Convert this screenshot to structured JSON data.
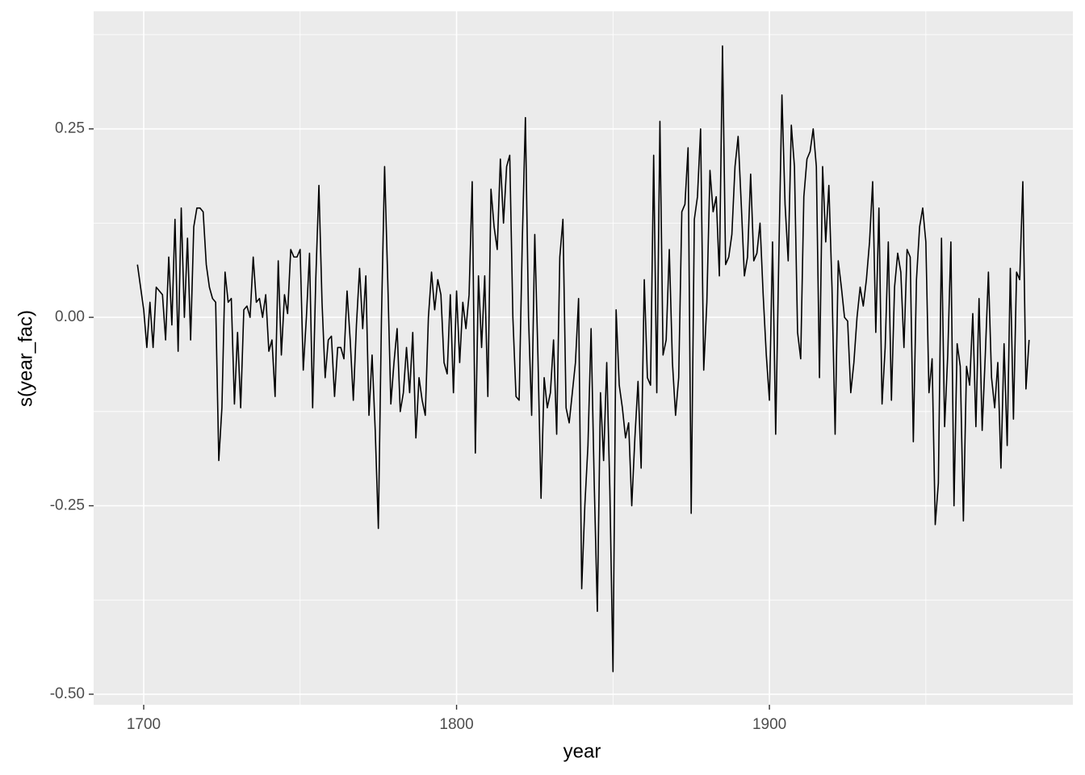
{
  "chart_data": {
    "type": "line",
    "x_label": "year",
    "y_label": "s(year_fac)",
    "color": "#000000",
    "x": [
      1698,
      1699,
      1700,
      1701,
      1702,
      1703,
      1704,
      1705,
      1706,
      1707,
      1708,
      1709,
      1710,
      1711,
      1712,
      1713,
      1714,
      1715,
      1716,
      1717,
      1718,
      1719,
      1720,
      1721,
      1722,
      1723,
      1724,
      1725,
      1726,
      1727,
      1728,
      1729,
      1730,
      1731,
      1732,
      1733,
      1734,
      1735,
      1736,
      1737,
      1738,
      1739,
      1740,
      1741,
      1742,
      1743,
      1744,
      1745,
      1746,
      1747,
      1748,
      1749,
      1750,
      1751,
      1752,
      1753,
      1754,
      1755,
      1756,
      1757,
      1758,
      1759,
      1760,
      1761,
      1762,
      1763,
      1764,
      1765,
      1766,
      1767,
      1768,
      1769,
      1770,
      1771,
      1772,
      1773,
      1774,
      1775,
      1776,
      1777,
      1778,
      1779,
      1780,
      1781,
      1782,
      1783,
      1784,
      1785,
      1786,
      1787,
      1788,
      1789,
      1790,
      1791,
      1792,
      1793,
      1794,
      1795,
      1796,
      1797,
      1798,
      1799,
      1800,
      1801,
      1802,
      1803,
      1804,
      1805,
      1806,
      1807,
      1808,
      1809,
      1810,
      1811,
      1812,
      1813,
      1814,
      1815,
      1816,
      1817,
      1818,
      1819,
      1820,
      1821,
      1822,
      1823,
      1824,
      1825,
      1826,
      1827,
      1828,
      1829,
      1830,
      1831,
      1832,
      1833,
      1834,
      1835,
      1836,
      1837,
      1838,
      1839,
      1840,
      1841,
      1842,
      1843,
      1844,
      1845,
      1846,
      1847,
      1848,
      1849,
      1850,
      1851,
      1852,
      1853,
      1854,
      1855,
      1856,
      1857,
      1858,
      1859,
      1860,
      1861,
      1862,
      1863,
      1864,
      1865,
      1866,
      1867,
      1868,
      1869,
      1870,
      1871,
      1872,
      1873,
      1874,
      1875,
      1876,
      1877,
      1878,
      1879,
      1880,
      1881,
      1882,
      1883,
      1884,
      1885,
      1886,
      1887,
      1888,
      1889,
      1890,
      1891,
      1892,
      1893,
      1894,
      1895,
      1896,
      1897,
      1898,
      1899,
      1900,
      1901,
      1902,
      1903,
      1904,
      1905,
      1906,
      1907,
      1908,
      1909,
      1910,
      1911,
      1912,
      1913,
      1914,
      1915,
      1916,
      1917,
      1918,
      1919,
      1920,
      1921,
      1922,
      1923,
      1924,
      1925,
      1926,
      1927,
      1928,
      1929,
      1930,
      1931,
      1932,
      1933,
      1934,
      1935,
      1936,
      1937,
      1938,
      1939,
      1940,
      1941,
      1942,
      1943,
      1944,
      1945,
      1946,
      1947,
      1948,
      1949,
      1950,
      1951,
      1952,
      1953,
      1954,
      1955,
      1956,
      1957,
      1958,
      1959,
      1960,
      1961,
      1962,
      1963,
      1964,
      1965,
      1966,
      1967,
      1968,
      1969,
      1970,
      1971,
      1972,
      1973,
      1974,
      1975,
      1976,
      1977,
      1978,
      1979,
      1980,
      1981,
      1982,
      1983
    ],
    "values": [
      0.07,
      0.04,
      0.01,
      -0.04,
      0.02,
      -0.04,
      0.04,
      0.035,
      0.03,
      -0.03,
      0.08,
      -0.01,
      0.13,
      -0.045,
      0.145,
      0.0,
      0.105,
      -0.03,
      0.12,
      0.145,
      0.145,
      0.14,
      0.07,
      0.04,
      0.025,
      0.02,
      -0.19,
      -0.12,
      0.06,
      0.02,
      0.025,
      -0.115,
      -0.02,
      -0.12,
      0.01,
      0.015,
      0.0,
      0.08,
      0.02,
      0.025,
      0.0,
      0.03,
      -0.045,
      -0.03,
      -0.105,
      0.075,
      -0.05,
      0.03,
      0.005,
      0.09,
      0.08,
      0.08,
      0.09,
      -0.07,
      0.0,
      0.085,
      -0.12,
      0.05,
      0.175,
      0.02,
      -0.08,
      -0.03,
      -0.025,
      -0.105,
      -0.04,
      -0.04,
      -0.055,
      0.035,
      -0.03,
      -0.11,
      -0.01,
      0.065,
      -0.015,
      0.055,
      -0.13,
      -0.05,
      -0.15,
      -0.28,
      0.0,
      0.2,
      0.05,
      -0.115,
      -0.06,
      -0.015,
      -0.125,
      -0.1,
      -0.04,
      -0.1,
      -0.02,
      -0.16,
      -0.08,
      -0.11,
      -0.13,
      0.0,
      0.06,
      0.01,
      0.05,
      0.03,
      -0.06,
      -0.075,
      0.03,
      -0.1,
      0.035,
      -0.06,
      0.02,
      -0.015,
      0.03,
      0.18,
      -0.18,
      0.055,
      -0.04,
      0.055,
      -0.105,
      0.17,
      0.12,
      0.09,
      0.21,
      0.125,
      0.2,
      0.215,
      0.0,
      -0.105,
      -0.11,
      0.1,
      0.265,
      0.0,
      -0.13,
      0.11,
      -0.05,
      -0.24,
      -0.08,
      -0.12,
      -0.1,
      -0.03,
      -0.155,
      0.08,
      0.13,
      -0.12,
      -0.14,
      -0.1,
      -0.06,
      0.025,
      -0.36,
      -0.25,
      -0.17,
      -0.015,
      -0.22,
      -0.39,
      -0.1,
      -0.19,
      -0.06,
      -0.23,
      -0.47,
      0.01,
      -0.09,
      -0.12,
      -0.16,
      -0.14,
      -0.25,
      -0.16,
      -0.085,
      -0.2,
      0.05,
      -0.08,
      -0.09,
      0.215,
      -0.1,
      0.26,
      -0.05,
      -0.03,
      0.09,
      -0.06,
      -0.13,
      -0.08,
      0.14,
      0.15,
      0.225,
      -0.26,
      0.13,
      0.16,
      0.25,
      -0.07,
      0.02,
      0.195,
      0.14,
      0.16,
      0.055,
      0.36,
      0.07,
      0.08,
      0.11,
      0.2,
      0.24,
      0.15,
      0.055,
      0.08,
      0.19,
      0.075,
      0.085,
      0.125,
      0.03,
      -0.05,
      -0.11,
      0.1,
      -0.155,
      0.08,
      0.295,
      0.15,
      0.075,
      0.255,
      0.2,
      -0.02,
      -0.055,
      0.16,
      0.21,
      0.22,
      0.25,
      0.2,
      -0.08,
      0.2,
      0.1,
      0.175,
      0.04,
      -0.155,
      0.075,
      0.04,
      0.0,
      -0.005,
      -0.1,
      -0.06,
      0.0,
      0.04,
      0.015,
      0.05,
      0.1,
      0.18,
      -0.02,
      0.145,
      -0.115,
      -0.04,
      0.1,
      -0.11,
      0.04,
      0.085,
      0.06,
      -0.04,
      0.09,
      0.08,
      -0.165,
      0.05,
      0.12,
      0.145,
      0.1,
      -0.1,
      -0.055,
      -0.275,
      -0.22,
      0.105,
      -0.145,
      -0.05,
      0.1,
      -0.25,
      -0.035,
      -0.065,
      -0.27,
      -0.065,
      -0.09,
      0.005,
      -0.145,
      0.025,
      -0.15,
      -0.05,
      0.06,
      -0.08,
      -0.12,
      -0.06,
      -0.2,
      -0.035,
      -0.17,
      0.065,
      -0.135,
      0.06,
      0.05,
      0.18,
      -0.095,
      -0.03
    ],
    "xlim": [
      1684,
      1997
    ],
    "ylim": [
      -0.514,
      0.406
    ],
    "xticks": [
      1700,
      1800,
      1900
    ],
    "yticks": [
      {
        "value": 0.25,
        "label": "0.25"
      },
      {
        "value": 0,
        "label": "0.00"
      },
      {
        "value": -0.25,
        "label": "-0.25"
      },
      {
        "value": -0.5,
        "label": "-0.50"
      }
    ],
    "xminor": [
      1750,
      1850,
      1950
    ],
    "yminor": [
      -0.375,
      -0.125,
      0.125,
      0.375
    ],
    "grid": true
  }
}
